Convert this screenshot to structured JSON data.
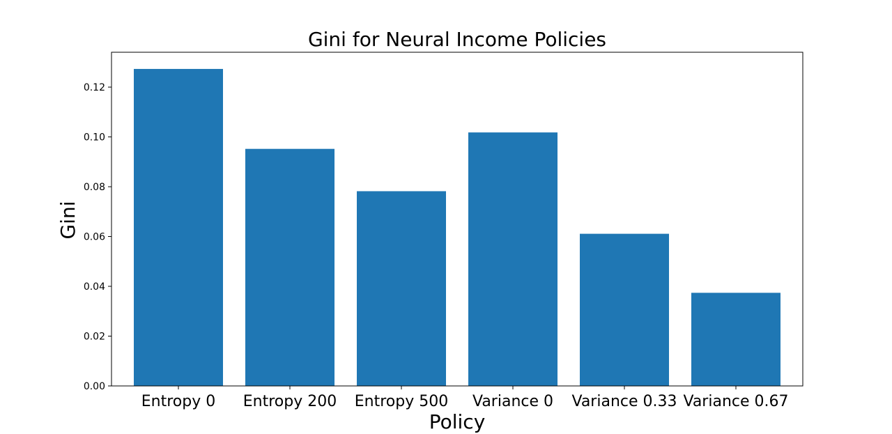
{
  "chart_data": {
    "type": "bar",
    "title": "Gini for Neural Income Policies",
    "xlabel": "Policy",
    "ylabel": "Gini",
    "categories": [
      "Entropy 0",
      "Entropy 200",
      "Entropy 500",
      "Variance 0",
      "Variance 0.33",
      "Variance 0.67"
    ],
    "values": [
      0.1273,
      0.0952,
      0.0782,
      0.1018,
      0.0611,
      0.0374
    ],
    "ylim": [
      0,
      0.134
    ],
    "yticks": [
      0.0,
      0.02,
      0.04,
      0.06,
      0.08,
      0.1,
      0.12
    ],
    "ytick_labels": [
      "0.00",
      "0.02",
      "0.04",
      "0.06",
      "0.08",
      "0.10",
      "0.12"
    ],
    "grid": false,
    "legend": "none",
    "bar_color": "#1f77b4"
  }
}
